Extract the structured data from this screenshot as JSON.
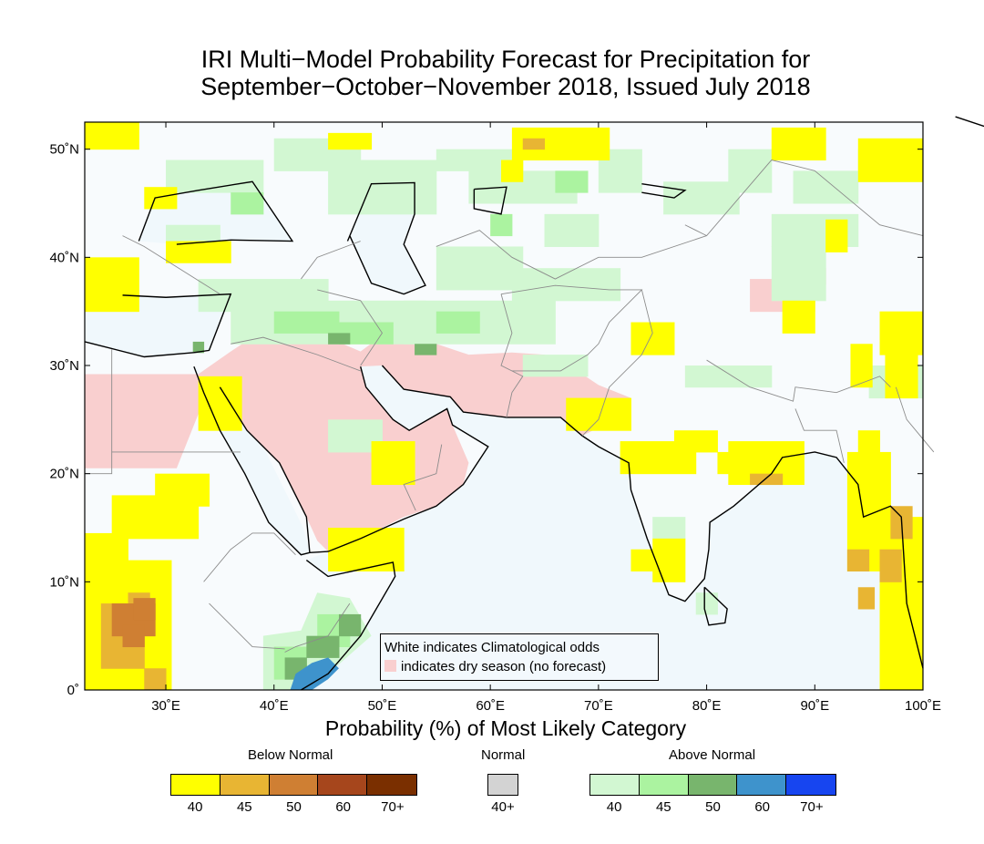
{
  "title": {
    "line1": "IRI Multi−Model Probability Forecast for Precipitation for",
    "line2": "September−October−November 2018, Issued July 2018"
  },
  "map": {
    "region": "South Asia, Middle East and East Africa",
    "lon_range": [
      22.5,
      100
    ],
    "lat_range": [
      0,
      52.5
    ],
    "lon_ticks": [
      "30˚E",
      "40˚E",
      "50˚E",
      "60˚E",
      "70˚E",
      "80˚E",
      "90˚E",
      "100˚E"
    ],
    "lat_ticks": [
      "0˚",
      "10˚N",
      "20˚N",
      "30˚N",
      "40˚N",
      "50˚N"
    ],
    "colors": {
      "climatology": "#f8fbfd",
      "ocean": "#f0f8fc",
      "dry_season": "#f9cfcf",
      "coast": "#000000",
      "border": "#888888"
    }
  },
  "inset_legend": {
    "line1": "White indicates Climatological odds",
    "line2": "indicates dry season (no forecast)"
  },
  "x_title": "Probability (%) of Most Likely Category",
  "colorbar": {
    "below": {
      "label": "Below Normal",
      "colors": [
        "#ffff00",
        "#e8b533",
        "#cf7f33",
        "#a6461c",
        "#7a2f00"
      ],
      "ticks": [
        "40",
        "45",
        "50",
        "60",
        "70+"
      ]
    },
    "normal": {
      "label": "Normal",
      "colors": [
        "#d3d3d3"
      ],
      "ticks": [
        "40+"
      ]
    },
    "above": {
      "label": "Above Normal",
      "colors": [
        "#d2f7d2",
        "#abf3a0",
        "#78b56d",
        "#3e93cc",
        "#1745f0"
      ],
      "ticks": [
        "40",
        "45",
        "50",
        "60",
        "70+"
      ]
    }
  }
}
